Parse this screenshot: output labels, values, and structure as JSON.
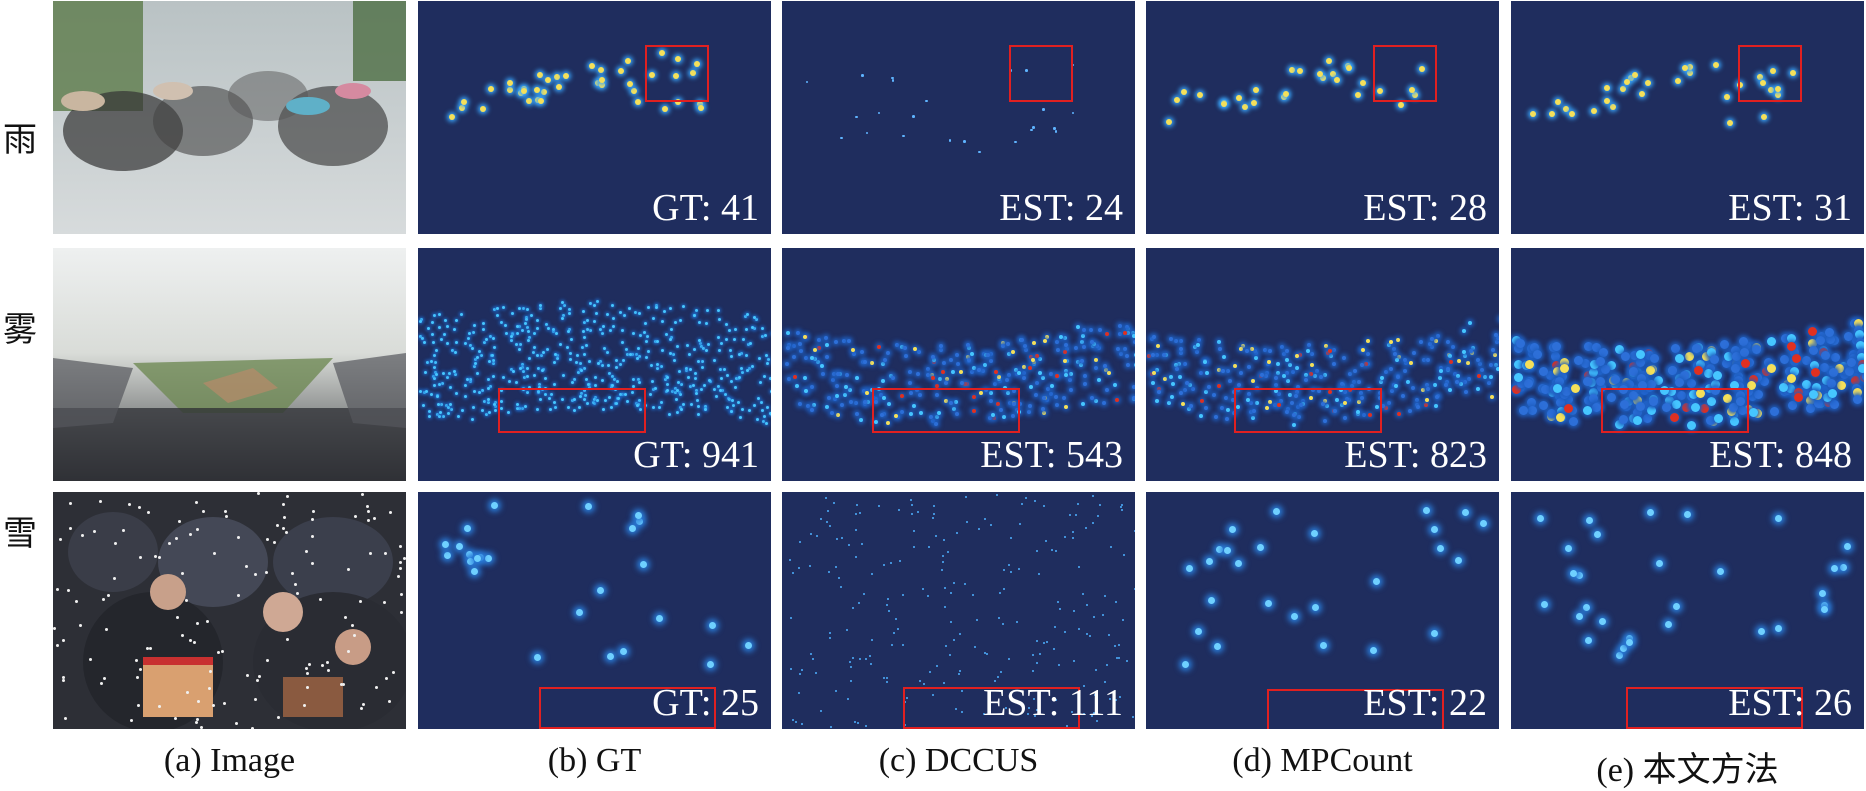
{
  "rows": [
    {
      "label": "雨",
      "gt": "GT: 41",
      "dccus": "EST: 24",
      "mpcount": "EST: 28",
      "ours": "EST: 31"
    },
    {
      "label": "雾",
      "gt": "GT: 941",
      "dccus": "EST: 543",
      "mpcount": "EST: 823",
      "ours": "EST: 848"
    },
    {
      "label": "雪",
      "gt": "GT: 25",
      "dccus": "EST: 111",
      "mpcount": "EST: 22",
      "ours": "EST: 26"
    }
  ],
  "columns": [
    {
      "caption": "(a) Image"
    },
    {
      "caption": "(b) GT"
    },
    {
      "caption": "(c) DCCUS"
    },
    {
      "caption": "(d) MPCount"
    },
    {
      "caption": "(e) 本文方法"
    }
  ],
  "colors": {
    "density_bg": "#1f2d5e",
    "box": "#e02020"
  }
}
